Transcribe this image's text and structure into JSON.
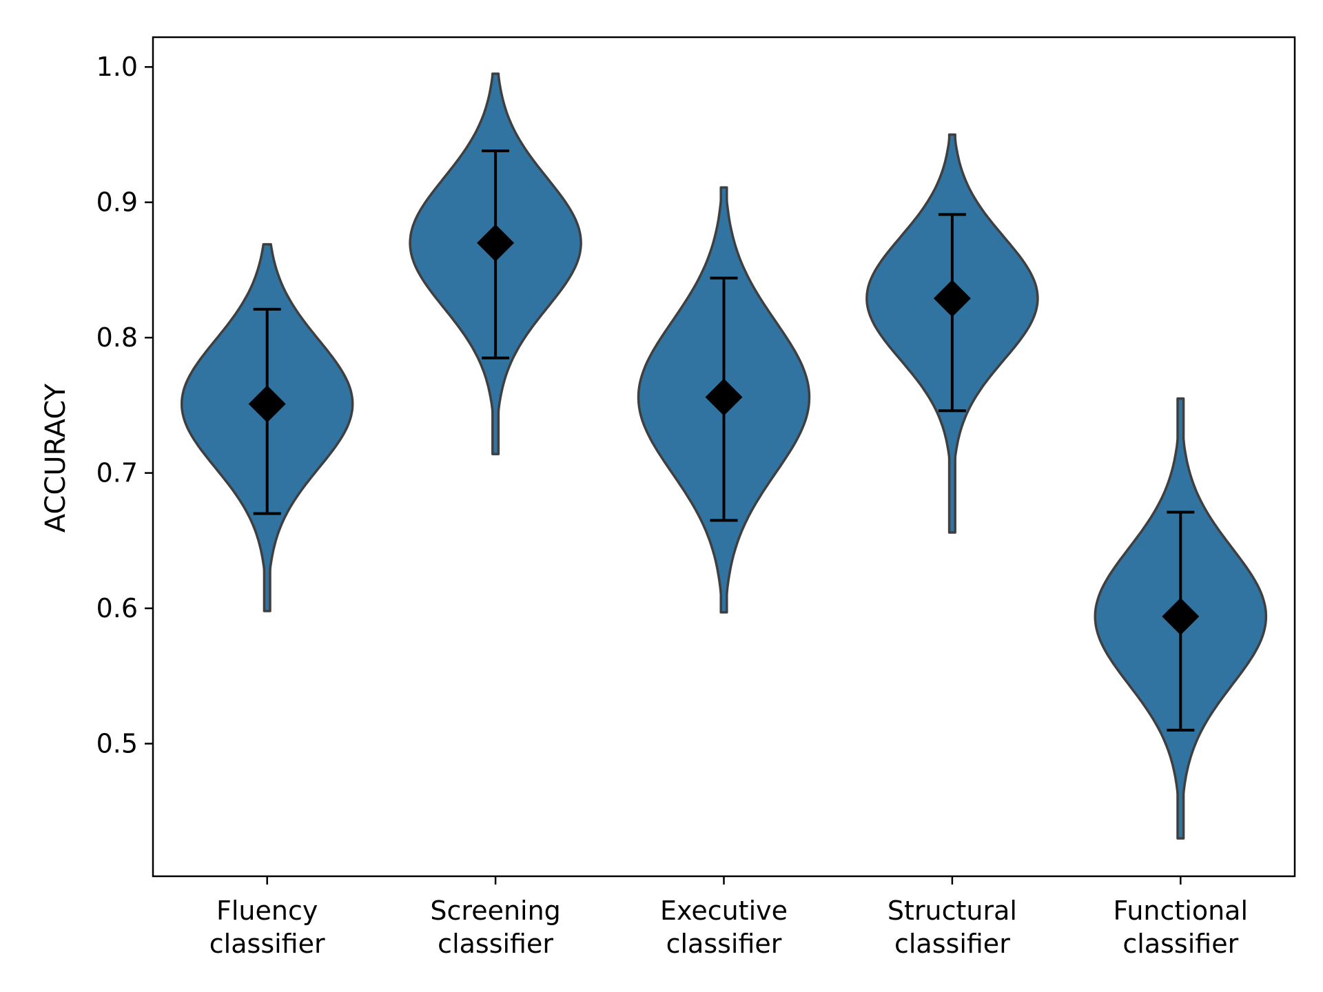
{
  "chart_data": {
    "type": "violin",
    "title": "",
    "xlabel": "",
    "ylabel": "ACCURACY",
    "ylim": [
      0.402,
      1.022
    ],
    "yticks": [
      "0.5",
      "0.6",
      "0.7",
      "0.8",
      "0.9",
      "1.0"
    ],
    "grid": false,
    "legend": "none",
    "colors": {
      "fill": "#3274a1",
      "outline": "#3f3f3f",
      "marker": "#000000"
    },
    "categories": [
      {
        "label_lines": [
          "Fluency",
          "classifier"
        ],
        "mean": 0.751,
        "err_low": 0.67,
        "err_high": 0.821,
        "min": 0.598,
        "max": 0.869
      },
      {
        "label_lines": [
          "Screening",
          "classifier"
        ],
        "mean": 0.87,
        "err_low": 0.785,
        "err_high": 0.938,
        "min": 0.714,
        "max": 0.995
      },
      {
        "label_lines": [
          "Executive",
          "classifier"
        ],
        "mean": 0.756,
        "err_low": 0.665,
        "err_high": 0.844,
        "min": 0.597,
        "max": 0.911
      },
      {
        "label_lines": [
          "Structural",
          "classifier"
        ],
        "mean": 0.829,
        "err_low": 0.746,
        "err_high": 0.891,
        "min": 0.656,
        "max": 0.95
      },
      {
        "label_lines": [
          "Functional",
          "classifier"
        ],
        "mean": 0.594,
        "err_low": 0.51,
        "err_high": 0.671,
        "min": 0.43,
        "max": 0.755
      }
    ]
  }
}
